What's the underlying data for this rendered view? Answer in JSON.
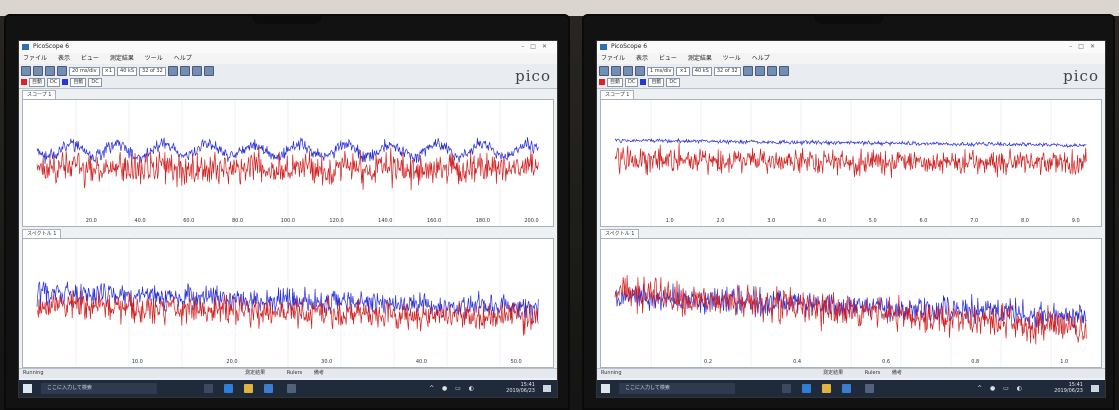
{
  "left_screen": {
    "title": "PicoScope 6",
    "menu": [
      "ファイル",
      "表示",
      "ビュー",
      "測定結果",
      "ツール",
      "ヘルプ"
    ],
    "timebase": "20 ms/div",
    "samples": "40 kS",
    "buffer": "32 of 32",
    "brand_logo": "pico",
    "tab_top": "スコープ 1",
    "tab_bottom": "スペクトル 1",
    "status_text": "Running",
    "measure_label": "測定結果",
    "rulers_label": "Rulers",
    "notes_label": "備考",
    "taskbar_search": "ここに入力して検索",
    "clock_time": "15:41",
    "clock_date": "2019/06/23",
    "xticks_top": [
      "20.0",
      "40.0",
      "60.0",
      "80.0",
      "100.0",
      "120.0",
      "140.0",
      "160.0",
      "180.0",
      "200.0"
    ],
    "xticks_bottom": [
      "10.0",
      "20.0",
      "30.0",
      "40.0",
      "50.0"
    ]
  },
  "right_screen": {
    "title": "PicoScope 6",
    "menu": [
      "ファイル",
      "表示",
      "ビュー",
      "測定結果",
      "ツール",
      "ヘルプ"
    ],
    "timebase": "1 ms/div",
    "samples": "40 kS",
    "buffer": "32 of 32",
    "brand_logo": "pico",
    "tab_top": "スコープ 1",
    "tab_bottom": "スペクトル 1",
    "status_text": "Running",
    "measure_label": "測定結果",
    "rulers_label": "Rulers",
    "notes_label": "備考",
    "taskbar_search": "ここに入力して検索",
    "clock_time": "15:41",
    "clock_date": "2019/06/23",
    "xticks_top": [
      "1.0",
      "2.0",
      "3.0",
      "4.0",
      "5.0",
      "6.0",
      "7.0",
      "8.0",
      "9.0"
    ],
    "xticks_bottom": [
      "0.2",
      "0.4",
      "0.6",
      "0.8",
      "1.0"
    ]
  },
  "colors": {
    "channel_a": "#d42020",
    "channel_b": "#2a2fd8",
    "taskbar": "#1f2a3a"
  }
}
